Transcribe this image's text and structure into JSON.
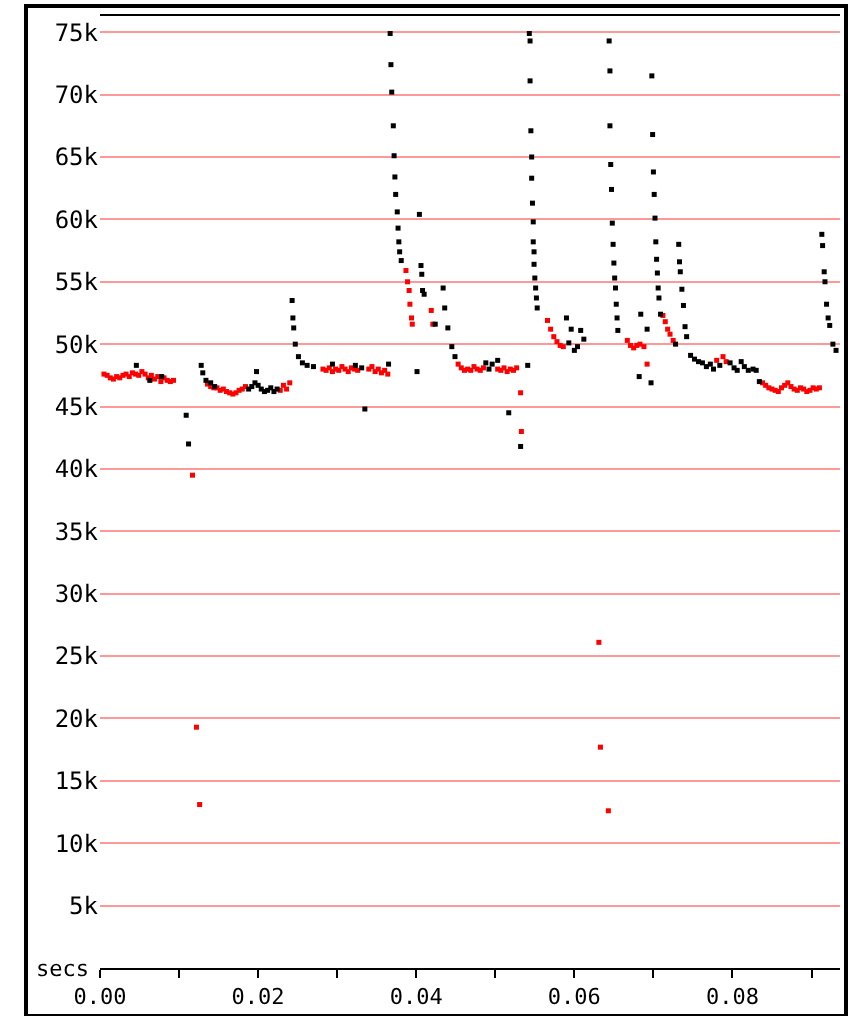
{
  "chart_data": {
    "type": "scatter",
    "xlabel": "secs",
    "marker": "square",
    "grid": "y",
    "xlim": [
      0,
      0.0936
    ],
    "ylim": [
      0,
      76300
    ],
    "xticks": [
      {
        "value": 0,
        "label": "0.00"
      },
      {
        "value": 0.01,
        "label": null
      },
      {
        "value": 0.02,
        "label": "0.02"
      },
      {
        "value": 0.03,
        "label": null
      },
      {
        "value": 0.04,
        "label": "0.04"
      },
      {
        "value": 0.05,
        "label": null
      },
      {
        "value": 0.06,
        "label": "0.06"
      },
      {
        "value": 0.07,
        "label": null
      },
      {
        "value": 0.08,
        "label": "0.08"
      },
      {
        "value": 0.09,
        "label": null
      }
    ],
    "yticks": [
      {
        "value": 5000,
        "label": "5k"
      },
      {
        "value": 10000,
        "label": "10k"
      },
      {
        "value": 15000,
        "label": "15k"
      },
      {
        "value": 20000,
        "label": "20k"
      },
      {
        "value": 25000,
        "label": "25k"
      },
      {
        "value": 30000,
        "label": "30k"
      },
      {
        "value": 35000,
        "label": "35k"
      },
      {
        "value": 40000,
        "label": "40k"
      },
      {
        "value": 45000,
        "label": "45k"
      },
      {
        "value": 50000,
        "label": "50k"
      },
      {
        "value": 55000,
        "label": "55k"
      },
      {
        "value": 60000,
        "label": "60k"
      },
      {
        "value": 65000,
        "label": "65k"
      },
      {
        "value": 70000,
        "label": "70k"
      },
      {
        "value": 75000,
        "label": "75k"
      }
    ],
    "series": [
      {
        "color": "#ff0000",
        "x": [
          0.0005,
          0.0009,
          0.0013,
          0.0017,
          0.0021,
          0.0025,
          0.0029,
          0.0033,
          0.0037,
          0.0041,
          0.0045,
          0.0049,
          0.0053,
          0.0057,
          0.0061,
          0.0065,
          0.0069,
          0.0073,
          0.0077,
          0.0081,
          0.0085,
          0.0089,
          0.0093,
          0.0117,
          0.0122,
          0.0126,
          0.0136,
          0.014,
          0.0144,
          0.0148,
          0.0152,
          0.0156,
          0.016,
          0.0164,
          0.0168,
          0.0172,
          0.0176,
          0.018,
          0.0184,
          0.0228,
          0.0232,
          0.0236,
          0.024,
          0.0282,
          0.0286,
          0.029,
          0.0294,
          0.0298,
          0.0302,
          0.0306,
          0.031,
          0.0314,
          0.0318,
          0.0322,
          0.0326,
          0.034,
          0.0344,
          0.0348,
          0.0352,
          0.0356,
          0.036,
          0.0364,
          0.0387,
          0.0389,
          0.0391,
          0.0392,
          0.0394,
          0.0395,
          0.0419,
          0.0421,
          0.0453,
          0.0457,
          0.0461,
          0.0465,
          0.0469,
          0.0473,
          0.0477,
          0.0481,
          0.0485,
          0.0503,
          0.0507,
          0.0511,
          0.0515,
          0.0519,
          0.0523,
          0.0527,
          0.0532,
          0.0533,
          0.0566,
          0.057,
          0.0574,
          0.0578,
          0.0582,
          0.0586,
          0.0631,
          0.0633,
          0.0643,
          0.0667,
          0.0671,
          0.0675,
          0.0679,
          0.0683,
          0.0688,
          0.0692,
          0.0712,
          0.0715,
          0.0718,
          0.0721,
          0.0725,
          0.078,
          0.0788,
          0.0792,
          0.0838,
          0.0842,
          0.0846,
          0.085,
          0.0854,
          0.0858,
          0.0862,
          0.0866,
          0.087,
          0.0874,
          0.0878,
          0.0882,
          0.0886,
          0.089,
          0.0894,
          0.0898,
          0.0902,
          0.0906,
          0.091
        ],
        "values": [
          47600,
          47500,
          47300,
          47200,
          47400,
          47300,
          47500,
          47600,
          47400,
          47700,
          47600,
          47500,
          47800,
          47600,
          47300,
          47500,
          47200,
          47400,
          47000,
          47300,
          47100,
          47000,
          47100,
          39500,
          19300,
          13100,
          46800,
          46600,
          46500,
          46500,
          46300,
          46400,
          46200,
          46100,
          46000,
          46100,
          46300,
          46400,
          46600,
          46300,
          46700,
          46400,
          46900,
          48000,
          47900,
          48100,
          47800,
          48000,
          47900,
          48200,
          48000,
          47800,
          48100,
          48000,
          47900,
          48000,
          48200,
          47800,
          48000,
          47700,
          47900,
          47600,
          55900,
          55000,
          54300,
          53200,
          52100,
          51600,
          52700,
          51600,
          48400,
          48100,
          47900,
          48000,
          47900,
          48200,
          48000,
          47900,
          48100,
          48000,
          47900,
          48100,
          47800,
          48000,
          47900,
          48100,
          46100,
          43000,
          51900,
          51200,
          50600,
          50200,
          49900,
          49800,
          26100,
          17700,
          12600,
          50300,
          49900,
          49700,
          49900,
          50000,
          49800,
          48400,
          52300,
          51800,
          51200,
          50800,
          50300,
          48700,
          49000,
          48600,
          46900,
          46700,
          46500,
          46400,
          46300,
          46200,
          46500,
          46700,
          46900,
          46600,
          46400,
          46300,
          46500,
          46400,
          46200,
          46300,
          46500,
          46400,
          46500
        ]
      },
      {
        "color": "#000000",
        "x": [
          0.0046,
          0.0063,
          0.0078,
          0.0109,
          0.0112,
          0.0128,
          0.013,
          0.0134,
          0.014,
          0.0145,
          0.0188,
          0.0192,
          0.0196,
          0.0198,
          0.02,
          0.0204,
          0.0208,
          0.0212,
          0.0216,
          0.022,
          0.0224,
          0.0243,
          0.0244,
          0.0245,
          0.0247,
          0.0251,
          0.0256,
          0.0262,
          0.027,
          0.0294,
          0.0323,
          0.0331,
          0.0335,
          0.0365,
          0.0367,
          0.0368,
          0.0369,
          0.0371,
          0.0372,
          0.0373,
          0.0374,
          0.0376,
          0.0377,
          0.0378,
          0.0379,
          0.0381,
          0.0401,
          0.0404,
          0.0406,
          0.0407,
          0.0408,
          0.041,
          0.0424,
          0.0434,
          0.0436,
          0.044,
          0.0445,
          0.0449,
          0.0488,
          0.0492,
          0.0496,
          0.0503,
          0.0517,
          0.0532,
          0.0541,
          0.0543,
          0.0544,
          0.0544,
          0.0545,
          0.0546,
          0.0546,
          0.0547,
          0.0548,
          0.0548,
          0.0549,
          0.0549,
          0.055,
          0.0551,
          0.0552,
          0.0553,
          0.059,
          0.0593,
          0.0596,
          0.06,
          0.0604,
          0.0608,
          0.0612,
          0.0644,
          0.0645,
          0.0645,
          0.0646,
          0.0647,
          0.0648,
          0.0649,
          0.065,
          0.0651,
          0.0652,
          0.0653,
          0.0654,
          0.0655,
          0.0682,
          0.0684,
          0.0692,
          0.0697,
          0.0698,
          0.0699,
          0.07,
          0.0701,
          0.0702,
          0.0703,
          0.0704,
          0.0705,
          0.0706,
          0.0707,
          0.0709,
          0.0728,
          0.0732,
          0.0733,
          0.0734,
          0.0736,
          0.0738,
          0.074,
          0.0742,
          0.0747,
          0.0752,
          0.0757,
          0.0762,
          0.0767,
          0.0772,
          0.0776,
          0.0784,
          0.0797,
          0.0802,
          0.0806,
          0.0811,
          0.0815,
          0.082,
          0.0826,
          0.083,
          0.0834,
          0.0913,
          0.0914,
          0.0916,
          0.0917,
          0.0919,
          0.0921,
          0.0923,
          0.0927,
          0.0931
        ],
        "values": [
          48300,
          47100,
          47400,
          44300,
          42000,
          48300,
          47700,
          47100,
          46900,
          46600,
          46400,
          46600,
          46900,
          47800,
          46700,
          46400,
          46200,
          46300,
          46500,
          46200,
          46400,
          53500,
          52100,
          51300,
          50000,
          49000,
          48500,
          48300,
          48200,
          48400,
          48300,
          48100,
          44800,
          48400,
          74900,
          72400,
          70200,
          67500,
          65100,
          63400,
          62000,
          60600,
          59300,
          58200,
          57400,
          56700,
          47800,
          60400,
          56300,
          55600,
          54300,
          54000,
          51600,
          54500,
          52900,
          51300,
          49800,
          49000,
          48500,
          48000,
          48400,
          48700,
          44500,
          41800,
          48300,
          74900,
          74300,
          71100,
          67100,
          65000,
          63300,
          61300,
          59800,
          58200,
          57400,
          56400,
          55300,
          54500,
          53700,
          52900,
          52100,
          50100,
          51200,
          49500,
          49800,
          51100,
          50400,
          74300,
          71900,
          67500,
          64400,
          62400,
          59700,
          58000,
          56500,
          55300,
          54500,
          53200,
          52100,
          51100,
          47400,
          52400,
          51200,
          46900,
          71500,
          66800,
          63800,
          62000,
          60100,
          58200,
          56800,
          55700,
          54500,
          53700,
          52400,
          50000,
          58000,
          56600,
          55800,
          54400,
          53100,
          51400,
          50600,
          49100,
          48800,
          48600,
          48500,
          48200,
          48400,
          48000,
          48300,
          48500,
          48100,
          47900,
          48600,
          48200,
          47900,
          48000,
          47900,
          47000,
          58800,
          57900,
          55800,
          55000,
          53200,
          52100,
          51500,
          50000,
          49500
        ]
      }
    ]
  }
}
